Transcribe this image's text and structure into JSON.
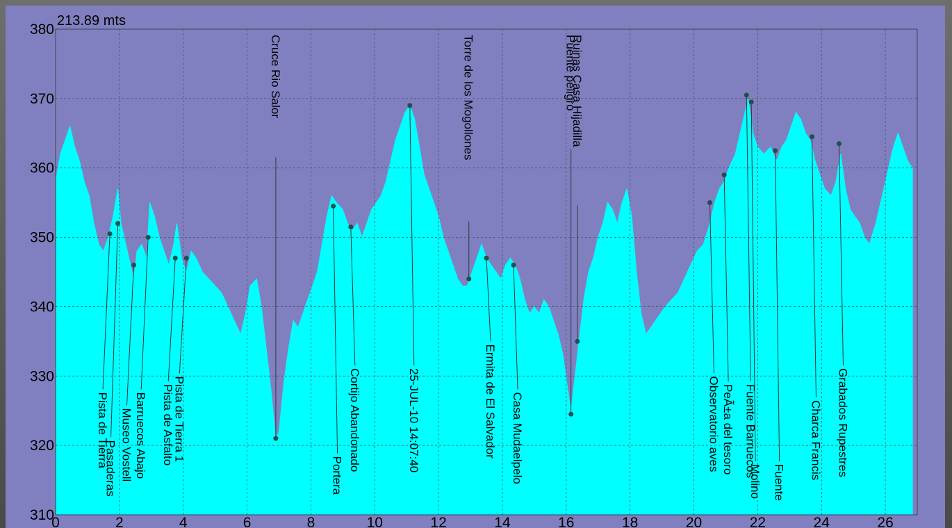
{
  "chart_data": {
    "type": "area",
    "title": "213.89 mts",
    "xlabel": "",
    "ylabel": "",
    "xlim": [
      0,
      27
    ],
    "ylim": [
      310,
      380
    ],
    "x_ticks": [
      "0",
      "2",
      "4",
      "6",
      "8",
      "10",
      "12",
      "14",
      "16",
      "18",
      "20",
      "22",
      "24",
      "26"
    ],
    "y_ticks": [
      "310",
      "320",
      "330",
      "340",
      "350",
      "360",
      "370",
      "380"
    ],
    "grid": true,
    "colors": {
      "fill": "#00ffff",
      "background": "#8080c0",
      "marker": "#1f4f4f",
      "leader": "#2b3a3a",
      "grid": "#445566"
    },
    "profile": [
      [
        0.0,
        358
      ],
      [
        0.15,
        362
      ],
      [
        0.3,
        364
      ],
      [
        0.45,
        366
      ],
      [
        0.6,
        363
      ],
      [
        0.75,
        361
      ],
      [
        0.9,
        358
      ],
      [
        1.05,
        356
      ],
      [
        1.2,
        352
      ],
      [
        1.35,
        349
      ],
      [
        1.5,
        348
      ],
      [
        1.65,
        350
      ],
      [
        1.8,
        353
      ],
      [
        1.95,
        357
      ],
      [
        2.05,
        352
      ],
      [
        2.2,
        349
      ],
      [
        2.3,
        347
      ],
      [
        2.45,
        344
      ],
      [
        2.55,
        348
      ],
      [
        2.7,
        349
      ],
      [
        2.85,
        347
      ],
      [
        2.95,
        355
      ],
      [
        3.1,
        353
      ],
      [
        3.25,
        350
      ],
      [
        3.4,
        348
      ],
      [
        3.55,
        346
      ],
      [
        3.7,
        349
      ],
      [
        3.8,
        352
      ],
      [
        3.95,
        347
      ],
      [
        4.1,
        345
      ],
      [
        4.25,
        348
      ],
      [
        4.4,
        347
      ],
      [
        4.6,
        345
      ],
      [
        4.8,
        344
      ],
      [
        5.0,
        343
      ],
      [
        5.2,
        342
      ],
      [
        5.4,
        340
      ],
      [
        5.6,
        338
      ],
      [
        5.8,
        336
      ],
      [
        5.95,
        339
      ],
      [
        6.1,
        343
      ],
      [
        6.3,
        344
      ],
      [
        6.45,
        340
      ],
      [
        6.6,
        334
      ],
      [
        6.75,
        328
      ],
      [
        6.9,
        321
      ],
      [
        7.0,
        322
      ],
      [
        7.15,
        329
      ],
      [
        7.3,
        334
      ],
      [
        7.45,
        338
      ],
      [
        7.6,
        337
      ],
      [
        7.75,
        339
      ],
      [
        7.9,
        341
      ],
      [
        8.05,
        343
      ],
      [
        8.2,
        345
      ],
      [
        8.35,
        349
      ],
      [
        8.5,
        353
      ],
      [
        8.65,
        356
      ],
      [
        8.8,
        355
      ],
      [
        9.0,
        354
      ],
      [
        9.15,
        352
      ],
      [
        9.3,
        351
      ],
      [
        9.45,
        352
      ],
      [
        9.6,
        350
      ],
      [
        9.75,
        352
      ],
      [
        9.9,
        354
      ],
      [
        10.05,
        355
      ],
      [
        10.2,
        356
      ],
      [
        10.35,
        358
      ],
      [
        10.5,
        361
      ],
      [
        10.65,
        364
      ],
      [
        10.8,
        366
      ],
      [
        10.95,
        368
      ],
      [
        11.1,
        369
      ],
      [
        11.25,
        367
      ],
      [
        11.4,
        363
      ],
      [
        11.55,
        359
      ],
      [
        11.7,
        357
      ],
      [
        11.85,
        355
      ],
      [
        12.0,
        353
      ],
      [
        12.15,
        350
      ],
      [
        12.3,
        348
      ],
      [
        12.45,
        346
      ],
      [
        12.6,
        344
      ],
      [
        12.75,
        343
      ],
      [
        12.9,
        343
      ],
      [
        13.05,
        345
      ],
      [
        13.2,
        347
      ],
      [
        13.35,
        349
      ],
      [
        13.5,
        347
      ],
      [
        13.65,
        346
      ],
      [
        13.8,
        345
      ],
      [
        13.95,
        344
      ],
      [
        14.1,
        346
      ],
      [
        14.25,
        347
      ],
      [
        14.4,
        346
      ],
      [
        14.55,
        344
      ],
      [
        14.7,
        341
      ],
      [
        14.85,
        339
      ],
      [
        15.0,
        340
      ],
      [
        15.15,
        339
      ],
      [
        15.3,
        341
      ],
      [
        15.45,
        340
      ],
      [
        15.6,
        338
      ],
      [
        15.75,
        336
      ],
      [
        15.9,
        333
      ],
      [
        16.05,
        328
      ],
      [
        16.15,
        325
      ],
      [
        16.25,
        329
      ],
      [
        16.4,
        335
      ],
      [
        16.55,
        341
      ],
      [
        16.7,
        345
      ],
      [
        16.85,
        347
      ],
      [
        17.0,
        350
      ],
      [
        17.15,
        352
      ],
      [
        17.3,
        355
      ],
      [
        17.45,
        354
      ],
      [
        17.6,
        352
      ],
      [
        17.75,
        355
      ],
      [
        17.9,
        357
      ],
      [
        18.05,
        353
      ],
      [
        18.2,
        345
      ],
      [
        18.35,
        339
      ],
      [
        18.5,
        336
      ],
      [
        18.65,
        337
      ],
      [
        18.8,
        338
      ],
      [
        18.95,
        339
      ],
      [
        19.1,
        340
      ],
      [
        19.3,
        341
      ],
      [
        19.5,
        342
      ],
      [
        19.7,
        344
      ],
      [
        19.9,
        346
      ],
      [
        20.1,
        348
      ],
      [
        20.3,
        349
      ],
      [
        20.5,
        352
      ],
      [
        20.65,
        355
      ],
      [
        20.8,
        357
      ],
      [
        20.95,
        358
      ],
      [
        21.1,
        360
      ],
      [
        21.3,
        362
      ],
      [
        21.5,
        366
      ],
      [
        21.7,
        370
      ],
      [
        21.85,
        365
      ],
      [
        22.0,
        363
      ],
      [
        22.2,
        362
      ],
      [
        22.4,
        363
      ],
      [
        22.6,
        361
      ],
      [
        22.75,
        363
      ],
      [
        22.9,
        364
      ],
      [
        23.05,
        366
      ],
      [
        23.2,
        368
      ],
      [
        23.35,
        367
      ],
      [
        23.5,
        365
      ],
      [
        23.65,
        364
      ],
      [
        23.8,
        361
      ],
      [
        23.95,
        359
      ],
      [
        24.1,
        357
      ],
      [
        24.3,
        356
      ],
      [
        24.45,
        358
      ],
      [
        24.6,
        362
      ],
      [
        24.75,
        357
      ],
      [
        24.9,
        354
      ],
      [
        25.05,
        353
      ],
      [
        25.2,
        352
      ],
      [
        25.35,
        350
      ],
      [
        25.5,
        349
      ],
      [
        25.7,
        352
      ],
      [
        25.9,
        356
      ],
      [
        26.1,
        360
      ],
      [
        26.25,
        363
      ],
      [
        26.4,
        365
      ],
      [
        26.55,
        363
      ],
      [
        26.7,
        361
      ],
      [
        26.85,
        360
      ]
    ],
    "waypoints": [
      {
        "name": "Pista de Tierra",
        "x": 1.7,
        "y": 350.5
      },
      {
        "name": "Pasaderas",
        "x": 1.95,
        "y": 352
      },
      {
        "name": "Museo Vostell",
        "x": 2.45,
        "y": 346
      },
      {
        "name": "Barruecos Abajo",
        "x": 2.9,
        "y": 350
      },
      {
        "name": "Pista de Asfalto",
        "x": 3.75,
        "y": 347
      },
      {
        "name": "Pista de Tierra 1",
        "x": 4.1,
        "y": 347
      },
      {
        "name": "Cruce Rio Salor",
        "x": 6.9,
        "y": 321
      },
      {
        "name": "Portera",
        "x": 8.7,
        "y": 354.5
      },
      {
        "name": "Cortijo Abandonado",
        "x": 9.25,
        "y": 351.5
      },
      {
        "name": "25-JUL-10 14:07:40",
        "x": 11.1,
        "y": 369
      },
      {
        "name": "Torre de los Mogollones",
        "x": 12.95,
        "y": 344
      },
      {
        "name": "Ermita de El Salvador",
        "x": 13.5,
        "y": 347
      },
      {
        "name": "Casa Mudaelpelo",
        "x": 14.35,
        "y": 346
      },
      {
        "name": "Puente peligro",
        "x": 16.15,
        "y": 324.5
      },
      {
        "name": "Ruinas Casa Hijadilla",
        "x": 16.35,
        "y": 335
      },
      {
        "name": "Observatorio aves",
        "x": 20.5,
        "y": 355
      },
      {
        "name": "PeÃ±a del tesoro",
        "x": 20.95,
        "y": 359
      },
      {
        "name": "Fuente Barruecos",
        "x": 21.65,
        "y": 370.5
      },
      {
        "name": "Molino",
        "x": 21.8,
        "y": 369.5
      },
      {
        "name": "Fuente",
        "x": 22.55,
        "y": 362.5
      },
      {
        "name": "Charca Francis",
        "x": 23.7,
        "y": 364.5
      },
      {
        "name": "Grabados Rupestres",
        "x": 24.55,
        "y": 363.5
      }
    ]
  }
}
